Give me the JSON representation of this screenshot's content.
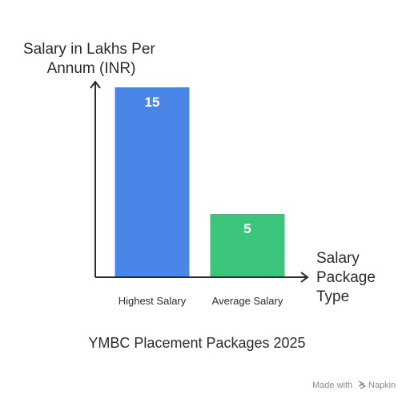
{
  "chart_data": {
    "type": "bar",
    "title": "YMBC Placement Packages 2025",
    "ylabel": "Salary in Lakhs Per Annum (INR)",
    "ylabel_lines": [
      "Salary in Lakhs Per",
      "Annum (INR)"
    ],
    "xlabel": "Salary Package Type",
    "xlabel_lines": [
      "Salary",
      "Package",
      "Type"
    ],
    "categories": [
      "Highest Salary",
      "Average Salary"
    ],
    "values": [
      15,
      5
    ],
    "data_labels": [
      "15",
      "5"
    ],
    "bar_colors": [
      "#4a86e8",
      "#3cc47c"
    ],
    "ylim": [
      0,
      16
    ],
    "grid": false,
    "legend": "none"
  },
  "colors": {
    "axis": "#2b2b2b",
    "text": "#2b2b2b",
    "data_label": "#ffffff",
    "watermark": "#8a8a8a"
  },
  "watermark": {
    "prefix": "Made with",
    "brand": "Napkin"
  }
}
